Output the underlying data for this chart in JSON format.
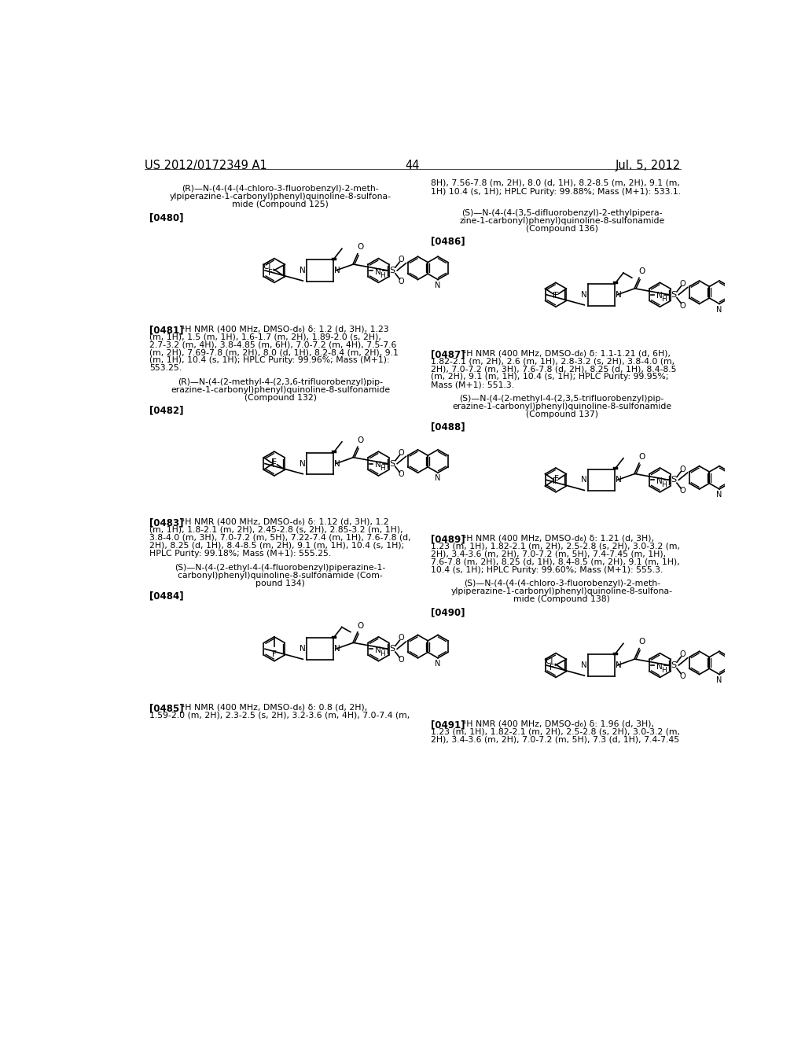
{
  "page_header_left": "US 2012/0172349 A1",
  "page_header_right": "Jul. 5, 2012",
  "page_number": "44",
  "background_color": "#ffffff",
  "text_color": "#000000",
  "top_right_continuation": "8H), 7.56-7.8 (m, 2H), 8.0 (d, 1H), 8.2-8.5 (m, 2H), 9.1 (m,\n1H) 10.4 (s, 1H); HPLC Purity: 99.88%; Mass (M+1): 533.1.",
  "left_blocks": [
    {
      "compound_name": "(R)—N-(4-(4-(4-chloro-3-fluorobenzyl)-2-meth-\nylpiperazine-1-carbonyl)phenyl)quinoline-8-sulfona-\nmide (Compound 125)",
      "struct_label": "[0480]",
      "nmr_label": "[0481]",
      "nmr_text": "¹H NMR (400 MHz, DMSO-d₆) δ: 1.2 (d, 3H), 1.23\n(m, 1H), 1.5 (m, 1H), 1.6-1.7 (m, 2H), 1.89-2.0 (s, 2H),\n2.7-3.2 (m, 4H), 3.8-4.85 (m, 6H), 7.0-7.2 (m, 4H), 7.5-7.6\n(m, 2H), 7.69-7.8 (m, 2H), 8.0 (d, 1H), 8.2-8.4 (m, 2H), 9.1\n(m, 1H), 10.4 (s, 1H); HPLC Purity: 99.96%; Mass (M+1):\n553.25.",
      "compound_id": "125"
    },
    {
      "compound_name": "(R)—N-(4-(2-methyl-4-(2,3,6-trifluorobenzyl)pip-\nerazine-1-carbonyl)phenyl)quinoline-8-sulfonamide\n(Compound 132)",
      "struct_label": "[0482]",
      "nmr_label": "[0483]",
      "nmr_text": "¹H NMR (400 MHz, DMSO-d₆) δ: 1.12 (d, 3H), 1.2\n(m, 1H), 1.8-2.1 (m, 2H), 2.45-2.8 (s, 2H), 2.85-3.2 (m, 1H),\n3.8-4.0 (m, 3H), 7.0-7.2 (m, 5H), 7.22-7.4 (m, 1H), 7.6-7.8 (d,\n2H), 8.25 (d, 1H), 8.4-8.5 (m, 2H), 9.1 (m, 1H), 10.4 (s, 1H);\nHPLC Purity: 99.18%; Mass (M+1): 555.25.",
      "compound_id": "132"
    },
    {
      "compound_name": "(S)—N-(4-(2-ethyl-4-(4-fluorobenzyl)piperazine-1-\ncarbonyl)phenyl)quinoline-8-sulfonamide (Com-\npound 134)",
      "struct_label": "[0484]",
      "nmr_label": "[0485]",
      "nmr_text": "¹H NMR (400 MHz, DMSO-d₆) δ: 0.8 (d, 2H),\n1.59-2.0 (m, 2H), 2.3-2.5 (s, 2H), 3.2-3.6 (m, 4H), 7.0-7.4 (m,",
      "compound_id": "134"
    }
  ],
  "right_blocks": [
    {
      "compound_name": "(S)—N-(4-(4-(3,5-difluorobenzyl)-2-ethylpipera-\nzine-1-carbonyl)phenyl)quinoline-8-sulfonamide\n(Compound 136)",
      "struct_label": "[0486]",
      "nmr_label": "[0487]",
      "nmr_text": "¹H NMR (400 MHz, DMSO-d₆) δ: 1.1-1.21 (d, 6H),\n1.82-2.1 (m, 2H), 2.6 (m, 1H), 2.8-3.2 (s, 2H), 3.8-4.0 (m,\n2H), 7.0-7.2 (m, 3H), 7.6-7.8 (d, 2H), 8.25 (d, 1H), 8.4-8.5\n(m, 2H), 9.1 (m, 1H), 10.4 (s, 1H); HPLC Purity: 99.95%;\nMass (M+1): 551.3.",
      "compound_id": "136"
    },
    {
      "compound_name": "(S)—N-(4-(2-methyl-4-(2,3,5-trifluorobenzyl)pip-\nerazine-1-carbonyl)phenyl)quinoline-8-sulfonamide\n(Compound 137)",
      "struct_label": "[0488]",
      "nmr_label": "[0489]",
      "nmr_text": "¹H NMR (400 MHz, DMSO-d₆) δ: 1.21 (d, 3H),\n1.23 (m, 1H), 1.82-2.1 (m, 2H), 2.5-2.8 (s, 2H), 3.0-3.2 (m,\n2H), 3.4-3.6 (m, 2H), 7.0-7.2 (m, 5H), 7.4-7.45 (m, 1H),\n7.6-7.8 (m, 2H), 8.25 (d, 1H), 8.4-8.5 (m, 2H), 9.1 (m, 1H),\n10.4 (s, 1H); HPLC Purity: 99.60%; Mass (M+1): 555.3.",
      "compound_id": "137"
    },
    {
      "compound_name": "(S)—N-(4-(4-(4-chloro-3-fluorobenzyl)-2-meth-\nylpiperazine-1-carbonyl)phenyl)quinoline-8-sulfona-\nmide (Compound 138)",
      "struct_label": "[0490]",
      "nmr_label": "[0491]",
      "nmr_text": "¹H NMR (400 MHz, DMSO-d₆) δ: 1.96 (d, 3H),\n1.23 (m, 1H), 1.82-2.1 (m, 2H), 2.5-2.8 (s, 2H), 3.0-3.2 (m,\n2H), 3.4-3.6 (m, 2H), 7.0-7.2 (m, 5H), 7.3 (d, 1H), 7.4-7.45",
      "compound_id": "138"
    }
  ]
}
